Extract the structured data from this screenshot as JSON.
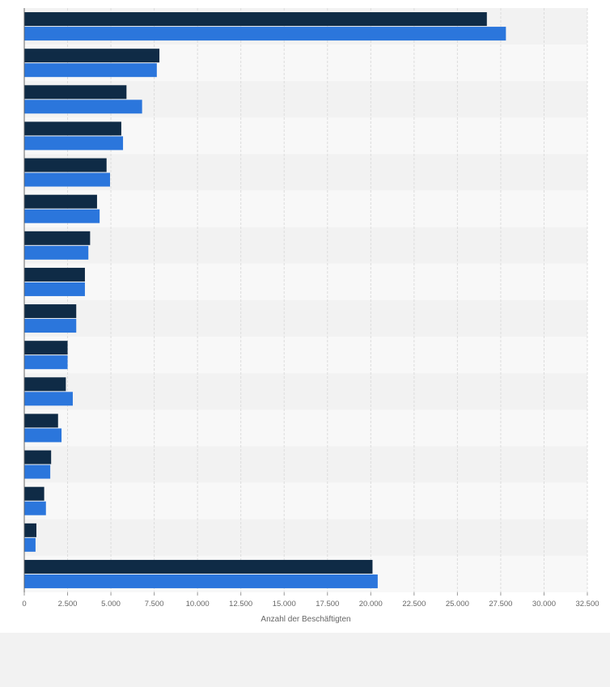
{
  "chart_data": {
    "type": "bar",
    "orientation": "horizontal",
    "title": "",
    "xlabel": "Anzahl der Beschäftigten",
    "ylabel": "",
    "xlim": [
      0,
      32500
    ],
    "xticks": [
      0,
      2500,
      5000,
      7500,
      10000,
      12500,
      15000,
      17500,
      20000,
      22500,
      25000,
      27500,
      30000,
      32500
    ],
    "xtick_labels": [
      "0",
      "2.500",
      "5.000",
      "7.500",
      "10.000",
      "12.500",
      "15.000",
      "17.500",
      "20.000",
      "22.500",
      "25.000",
      "27.500",
      "30.000",
      "32.500"
    ],
    "grid": true,
    "categories": [
      "",
      "",
      "",
      "",
      "",
      "",
      "",
      "",
      "",
      "",
      "",
      "",
      "",
      "",
      "",
      ""
    ],
    "series": [
      {
        "color": "#0f2b46",
        "values": [
          26700,
          7800,
          5900,
          5600,
          4750,
          4200,
          3800,
          3500,
          3000,
          2500,
          2400,
          1950,
          1550,
          1150,
          700,
          20100
        ]
      },
      {
        "color": "#2b76dc",
        "values": [
          27800,
          7650,
          6800,
          5700,
          4950,
          4350,
          3700,
          3500,
          3000,
          2500,
          2800,
          2150,
          1500,
          1250,
          650,
          20400
        ]
      }
    ]
  },
  "colors": {
    "band_even": "#f2f2f2",
    "band_odd": "#f8f8f8",
    "grid": "#dcdcdc",
    "axis": "#666666"
  }
}
